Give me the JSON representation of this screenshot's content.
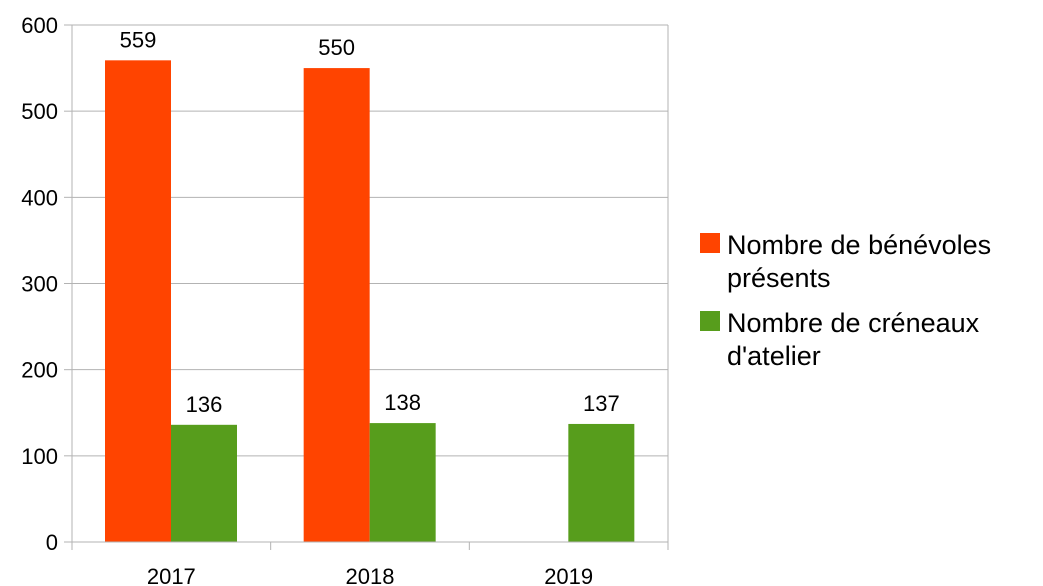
{
  "chart_data": {
    "type": "bar",
    "categories": [
      "2017",
      "2018",
      "2019"
    ],
    "series": [
      {
        "name": "Nombre de bénévoles présents",
        "name_lines": [
          "Nombre de bénévoles",
          "présents"
        ],
        "color": "#ff4400",
        "values": [
          559,
          550,
          null
        ]
      },
      {
        "name": "Nombre de créneaux d'atelier",
        "name_lines": [
          "Nombre de créneaux",
          "d'atelier"
        ],
        "color": "#579d1c",
        "values": [
          136,
          138,
          137
        ]
      }
    ],
    "ylim": [
      0,
      600
    ],
    "yticks": [
      0,
      100,
      200,
      300,
      400,
      500,
      600
    ],
    "grid": true,
    "legend": "right"
  }
}
